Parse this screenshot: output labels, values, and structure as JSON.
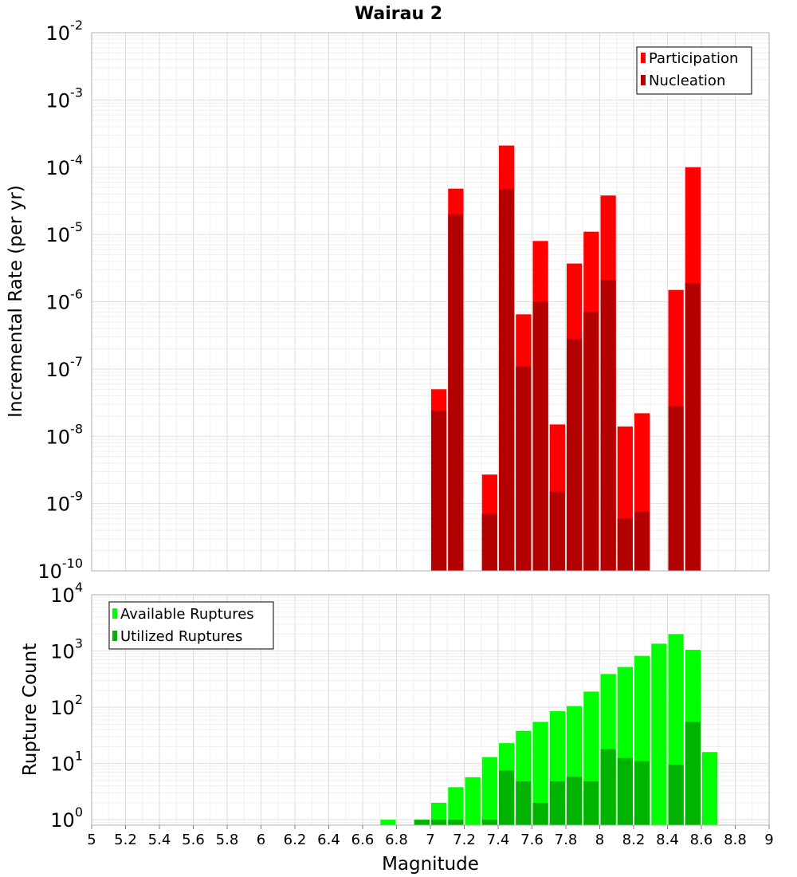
{
  "chart_data": [
    {
      "type": "bar",
      "title": "Wairau 2",
      "ylabel": "Incremental Rate (per yr)",
      "xlabel": "",
      "xlim": [
        5,
        9
      ],
      "ylim": [
        1e-10,
        0.01
      ],
      "yscale": "log",
      "grid": true,
      "legend_position": "top-right",
      "bar_width": 0.1,
      "series": [
        {
          "name": "Participation",
          "color": "#ff0000",
          "x": [
            7.05,
            7.15,
            7.35,
            7.45,
            7.55,
            7.65,
            7.75,
            7.85,
            7.95,
            8.05,
            8.15,
            8.25,
            8.45,
            8.55
          ],
          "values": [
            5e-08,
            4.8e-05,
            2.7e-09,
            0.00021,
            6.5e-07,
            8e-06,
            1.5e-08,
            3.7e-06,
            1.1e-05,
            3.8e-05,
            1.4e-08,
            2.2e-08,
            1.5e-06,
            0.0001
          ]
        },
        {
          "name": "Nucleation",
          "color": "#b30000",
          "x": [
            7.05,
            7.15,
            7.35,
            7.45,
            7.55,
            7.65,
            7.75,
            7.85,
            7.95,
            8.05,
            8.15,
            8.25,
            8.45,
            8.55
          ],
          "values": [
            2.4e-08,
            2e-05,
            7e-10,
            4.7e-05,
            1.1e-07,
            1e-06,
            1.5e-09,
            2.8e-07,
            7e-07,
            2.1e-06,
            6e-10,
            7.5e-10,
            2.8e-08,
            1.9e-06
          ]
        }
      ]
    },
    {
      "type": "bar",
      "title": "",
      "ylabel": "Rupture Count",
      "xlabel": "Magnitude",
      "xlim": [
        5,
        9
      ],
      "ylim": [
        0.8,
        10000
      ],
      "yscale": "log",
      "grid": true,
      "legend_position": "top-left",
      "bar_width": 0.1,
      "x_ticks": [
        "5",
        "5.2",
        "5.4",
        "5.6",
        "5.8",
        "6",
        "6.2",
        "6.4",
        "6.6",
        "6.8",
        "7",
        "7.2",
        "7.4",
        "7.6",
        "7.8",
        "8",
        "8.2",
        "8.4",
        "8.6",
        "8.8",
        "9"
      ],
      "series": [
        {
          "name": "Available Ruptures",
          "color": "#00ff00",
          "x": [
            6.75,
            6.95,
            7.05,
            7.15,
            7.25,
            7.35,
            7.45,
            7.55,
            7.65,
            7.75,
            7.85,
            7.95,
            8.05,
            8.15,
            8.25,
            8.35,
            8.45,
            8.55,
            8.65
          ],
          "values": [
            1,
            1,
            2,
            3.8,
            5.7,
            13,
            23,
            38,
            55,
            85,
            105,
            190,
            390,
            520,
            820,
            1350,
            2000,
            1050,
            16
          ]
        },
        {
          "name": "Utilized Ruptures",
          "color": "#00b300",
          "x": [
            6.95,
            7.05,
            7.15,
            7.35,
            7.45,
            7.55,
            7.65,
            7.75,
            7.85,
            7.95,
            8.05,
            8.15,
            8.25,
            8.45,
            8.55
          ],
          "values": [
            1,
            1,
            1,
            1,
            7.5,
            4.8,
            2,
            4.8,
            5.8,
            4.8,
            18,
            12.5,
            11,
            9.5,
            55
          ]
        }
      ]
    }
  ]
}
